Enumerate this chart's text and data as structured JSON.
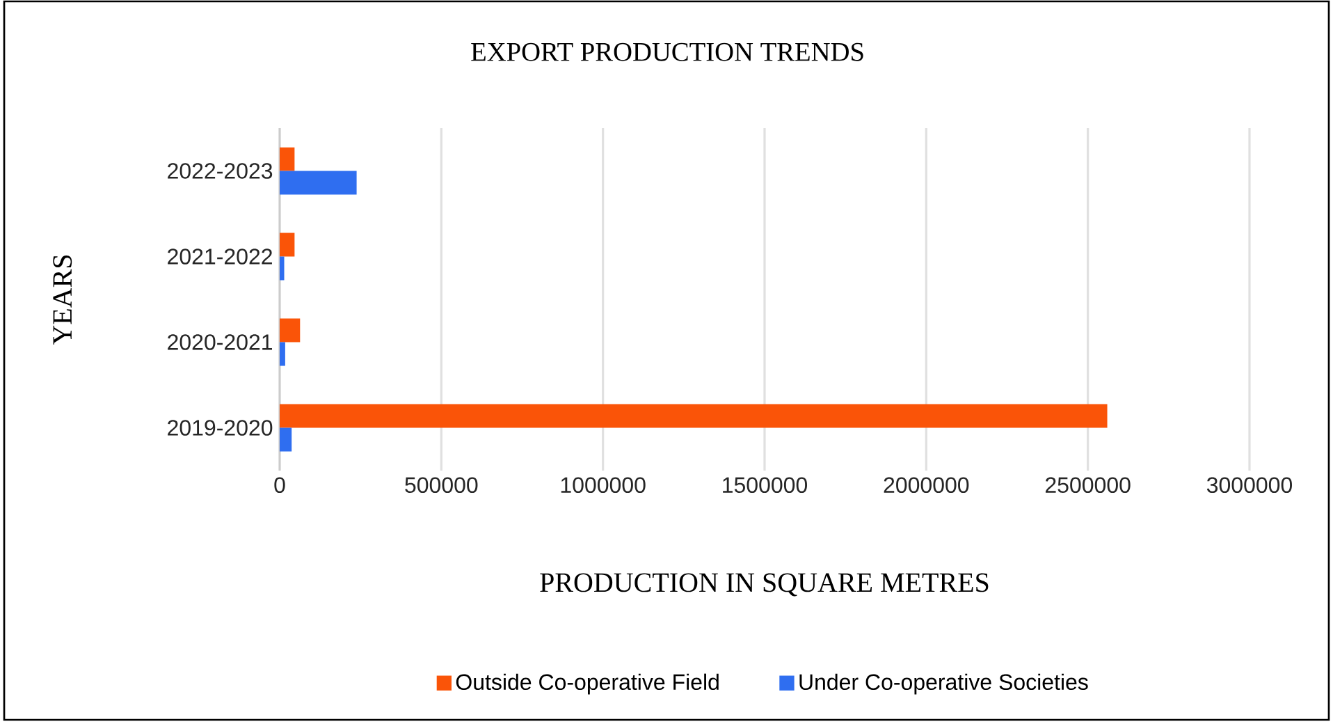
{
  "chart_data": {
    "type": "bar",
    "orientation": "horizontal",
    "title": "EXPORT PRODUCTION TRENDS",
    "xlabel": "PRODUCTION IN SQUARE METRES",
    "ylabel": "YEARS",
    "categories": [
      "2022-2023",
      "2021-2022",
      "2020-2021",
      "2019-2020"
    ],
    "series": [
      {
        "name": "Outside Co-operative Field",
        "color": "#fa5408",
        "values": [
          46000,
          46000,
          63000,
          2560000
        ]
      },
      {
        "name": "Under Co-operative Societies",
        "color": "#2f6ef0",
        "values": [
          238000,
          14000,
          17000,
          37000
        ]
      }
    ],
    "xlim": [
      0,
      3000000
    ],
    "xticks": [
      0,
      500000,
      1000000,
      1500000,
      2000000,
      2500000,
      3000000
    ],
    "grid": "x",
    "legend": "bottom"
  }
}
